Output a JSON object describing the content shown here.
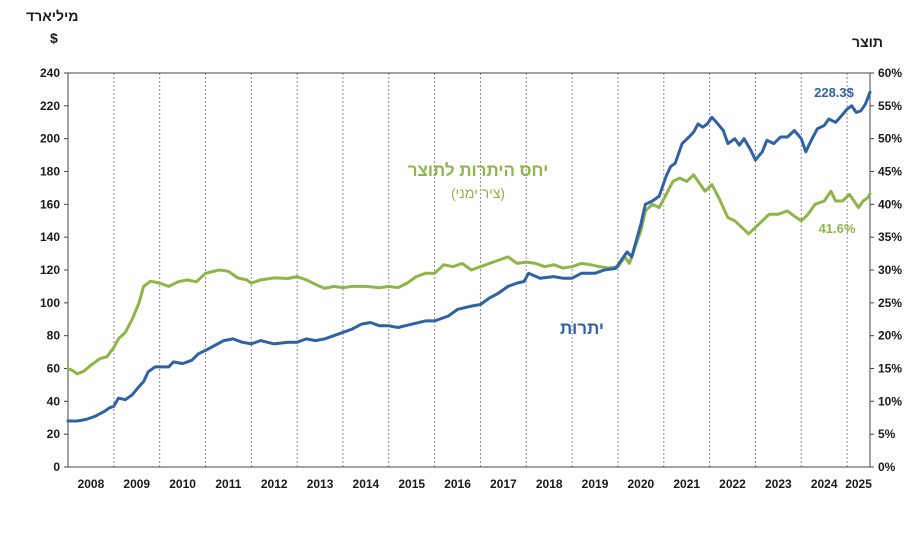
{
  "labels": {
    "left_unit_line1": "מיליארד",
    "left_unit_line2": "$",
    "right_unit": "תוצר",
    "series_reserves_label": "יתרות",
    "series_ratio_label": "יחס היתרות לתוצר",
    "series_ratio_sublabel": "(ציר ימני)",
    "end_value_reserves": "228.3$",
    "end_value_ratio": "41.6%"
  },
  "colors": {
    "reserves": "#2f62a4",
    "ratio": "#8db548",
    "grid": "#8a8a8a"
  },
  "chart_data": {
    "type": "line",
    "x_unit": "year",
    "x_tick_labels": [
      "2008",
      "2009",
      "2010",
      "2011",
      "2012",
      "2013",
      "2014",
      "2015",
      "2016",
      "2017",
      "2018",
      "2019",
      "2020",
      "2021",
      "2022",
      "2023",
      "2024",
      "2025"
    ],
    "xlim": [
      2008.0,
      2025.5
    ],
    "y_left": {
      "label": "מיליארד $",
      "lim": [
        0,
        240
      ],
      "ticks": [
        0,
        20,
        40,
        60,
        80,
        100,
        120,
        140,
        160,
        180,
        200,
        220,
        240
      ]
    },
    "y_right": {
      "label": "תוצר",
      "lim": [
        0,
        60
      ],
      "ticks": [
        0,
        5,
        10,
        15,
        20,
        25,
        30,
        35,
        40,
        45,
        50,
        55,
        60
      ],
      "tick_suffix": "%"
    },
    "grid": "vertical dashed at year boundaries",
    "series": [
      {
        "name": "יתרות",
        "axis": "left",
        "color": "#2f62a4",
        "points": [
          [
            2008.0,
            28
          ],
          [
            2008.2,
            28
          ],
          [
            2008.4,
            29
          ],
          [
            2008.6,
            31
          ],
          [
            2008.8,
            34
          ],
          [
            2008.9,
            36
          ],
          [
            2009.0,
            37
          ],
          [
            2009.1,
            42
          ],
          [
            2009.25,
            41
          ],
          [
            2009.4,
            44
          ],
          [
            2009.55,
            49
          ],
          [
            2009.65,
            52
          ],
          [
            2009.75,
            58
          ],
          [
            2009.9,
            61
          ],
          [
            2010.0,
            61
          ],
          [
            2010.2,
            61
          ],
          [
            2010.3,
            64
          ],
          [
            2010.5,
            63
          ],
          [
            2010.7,
            65
          ],
          [
            2010.85,
            69
          ],
          [
            2011.0,
            71
          ],
          [
            2011.2,
            74
          ],
          [
            2011.4,
            77
          ],
          [
            2011.6,
            78
          ],
          [
            2011.8,
            76
          ],
          [
            2012.0,
            75
          ],
          [
            2012.2,
            77
          ],
          [
            2012.5,
            75
          ],
          [
            2012.8,
            76
          ],
          [
            2013.0,
            76
          ],
          [
            2013.2,
            78
          ],
          [
            2013.4,
            77
          ],
          [
            2013.6,
            78
          ],
          [
            2013.8,
            80
          ],
          [
            2014.0,
            82
          ],
          [
            2014.2,
            84
          ],
          [
            2014.4,
            87
          ],
          [
            2014.6,
            88
          ],
          [
            2014.8,
            86
          ],
          [
            2015.0,
            86
          ],
          [
            2015.2,
            85
          ],
          [
            2015.5,
            87
          ],
          [
            2015.8,
            89
          ],
          [
            2016.0,
            89
          ],
          [
            2016.3,
            92
          ],
          [
            2016.5,
            96
          ],
          [
            2016.8,
            98
          ],
          [
            2017.0,
            99
          ],
          [
            2017.2,
            103
          ],
          [
            2017.4,
            106
          ],
          [
            2017.6,
            110
          ],
          [
            2017.8,
            112
          ],
          [
            2017.95,
            113
          ],
          [
            2018.05,
            118
          ],
          [
            2018.3,
            115
          ],
          [
            2018.6,
            116
          ],
          [
            2018.8,
            115
          ],
          [
            2019.0,
            115
          ],
          [
            2019.2,
            118
          ],
          [
            2019.5,
            118
          ],
          [
            2019.7,
            120
          ],
          [
            2019.95,
            121
          ],
          [
            2020.1,
            127
          ],
          [
            2020.2,
            131
          ],
          [
            2020.3,
            128
          ],
          [
            2020.5,
            148
          ],
          [
            2020.6,
            160
          ],
          [
            2020.75,
            162
          ],
          [
            2020.9,
            165
          ],
          [
            2021.05,
            177
          ],
          [
            2021.15,
            183
          ],
          [
            2021.25,
            185
          ],
          [
            2021.4,
            197
          ],
          [
            2021.55,
            201
          ],
          [
            2021.65,
            204
          ],
          [
            2021.75,
            209
          ],
          [
            2021.85,
            207
          ],
          [
            2021.95,
            209
          ],
          [
            2022.05,
            213
          ],
          [
            2022.15,
            210
          ],
          [
            2022.3,
            205
          ],
          [
            2022.4,
            197
          ],
          [
            2022.55,
            200
          ],
          [
            2022.65,
            196
          ],
          [
            2022.75,
            200
          ],
          [
            2022.9,
            193
          ],
          [
            2023.0,
            187
          ],
          [
            2023.15,
            192
          ],
          [
            2023.25,
            199
          ],
          [
            2023.4,
            197
          ],
          [
            2023.55,
            201
          ],
          [
            2023.7,
            201
          ],
          [
            2023.85,
            205
          ],
          [
            2024.0,
            200
          ],
          [
            2024.1,
            192
          ],
          [
            2024.2,
            198
          ],
          [
            2024.35,
            206
          ],
          [
            2024.5,
            208
          ],
          [
            2024.6,
            212
          ],
          [
            2024.75,
            210
          ],
          [
            2024.85,
            213
          ],
          [
            2025.0,
            218
          ],
          [
            2025.1,
            220
          ],
          [
            2025.2,
            216
          ],
          [
            2025.3,
            217
          ],
          [
            2025.4,
            221
          ],
          [
            2025.5,
            228.3
          ]
        ]
      },
      {
        "name": "יחס היתרות לתוצר",
        "axis": "right",
        "color": "#8db548",
        "points": [
          [
            2008.0,
            15
          ],
          [
            2008.1,
            14.7
          ],
          [
            2008.2,
            14.2
          ],
          [
            2008.35,
            14.6
          ],
          [
            2008.5,
            15.5
          ],
          [
            2008.7,
            16.5
          ],
          [
            2008.85,
            16.8
          ],
          [
            2009.0,
            18.2
          ],
          [
            2009.1,
            19.5
          ],
          [
            2009.25,
            20.5
          ],
          [
            2009.4,
            22.5
          ],
          [
            2009.55,
            25
          ],
          [
            2009.65,
            27.5
          ],
          [
            2009.8,
            28.3
          ],
          [
            2010.0,
            28
          ],
          [
            2010.2,
            27.5
          ],
          [
            2010.4,
            28.2
          ],
          [
            2010.6,
            28.5
          ],
          [
            2010.8,
            28.2
          ],
          [
            2011.0,
            29.5
          ],
          [
            2011.3,
            30
          ],
          [
            2011.5,
            29.8
          ],
          [
            2011.7,
            28.8
          ],
          [
            2011.9,
            28.5
          ],
          [
            2012.0,
            28
          ],
          [
            2012.2,
            28.5
          ],
          [
            2012.5,
            28.8
          ],
          [
            2012.8,
            28.7
          ],
          [
            2013.0,
            29
          ],
          [
            2013.2,
            28.5
          ],
          [
            2013.4,
            27.8
          ],
          [
            2013.6,
            27.2
          ],
          [
            2013.8,
            27.5
          ],
          [
            2014.0,
            27.3
          ],
          [
            2014.2,
            27.5
          ],
          [
            2014.5,
            27.5
          ],
          [
            2014.8,
            27.3
          ],
          [
            2015.0,
            27.5
          ],
          [
            2015.2,
            27.3
          ],
          [
            2015.4,
            28
          ],
          [
            2015.6,
            29
          ],
          [
            2015.8,
            29.5
          ],
          [
            2016.0,
            29.5
          ],
          [
            2016.2,
            30.8
          ],
          [
            2016.4,
            30.5
          ],
          [
            2016.6,
            31
          ],
          [
            2016.8,
            30
          ],
          [
            2017.0,
            30.5
          ],
          [
            2017.2,
            31
          ],
          [
            2017.4,
            31.5
          ],
          [
            2017.6,
            32
          ],
          [
            2017.8,
            31
          ],
          [
            2018.0,
            31.2
          ],
          [
            2018.2,
            31
          ],
          [
            2018.4,
            30.5
          ],
          [
            2018.6,
            30.8
          ],
          [
            2018.8,
            30.3
          ],
          [
            2019.0,
            30.5
          ],
          [
            2019.2,
            31
          ],
          [
            2019.4,
            30.8
          ],
          [
            2019.6,
            30.5
          ],
          [
            2019.8,
            30.3
          ],
          [
            2020.0,
            30.5
          ],
          [
            2020.15,
            32
          ],
          [
            2020.25,
            31
          ],
          [
            2020.35,
            33
          ],
          [
            2020.5,
            36
          ],
          [
            2020.6,
            39
          ],
          [
            2020.75,
            40
          ],
          [
            2020.9,
            39.5
          ],
          [
            2021.05,
            41.5
          ],
          [
            2021.2,
            43.5
          ],
          [
            2021.35,
            44
          ],
          [
            2021.5,
            43.5
          ],
          [
            2021.65,
            44.5
          ],
          [
            2021.8,
            43
          ],
          [
            2021.9,
            42
          ],
          [
            2022.05,
            43
          ],
          [
            2022.2,
            41
          ],
          [
            2022.3,
            39.5
          ],
          [
            2022.4,
            38
          ],
          [
            2022.55,
            37.5
          ],
          [
            2022.7,
            36.5
          ],
          [
            2022.85,
            35.5
          ],
          [
            2023.0,
            36.5
          ],
          [
            2023.15,
            37.5
          ],
          [
            2023.3,
            38.5
          ],
          [
            2023.5,
            38.5
          ],
          [
            2023.7,
            39
          ],
          [
            2023.85,
            38.2
          ],
          [
            2024.0,
            37.5
          ],
          [
            2024.15,
            38.5
          ],
          [
            2024.3,
            40
          ],
          [
            2024.5,
            40.5
          ],
          [
            2024.65,
            42
          ],
          [
            2024.75,
            40.5
          ],
          [
            2024.9,
            40.5
          ],
          [
            2025.05,
            41.5
          ],
          [
            2025.15,
            40.5
          ],
          [
            2025.25,
            39.5
          ],
          [
            2025.35,
            40.5
          ],
          [
            2025.45,
            41
          ],
          [
            2025.5,
            41.6
          ]
        ]
      }
    ]
  }
}
